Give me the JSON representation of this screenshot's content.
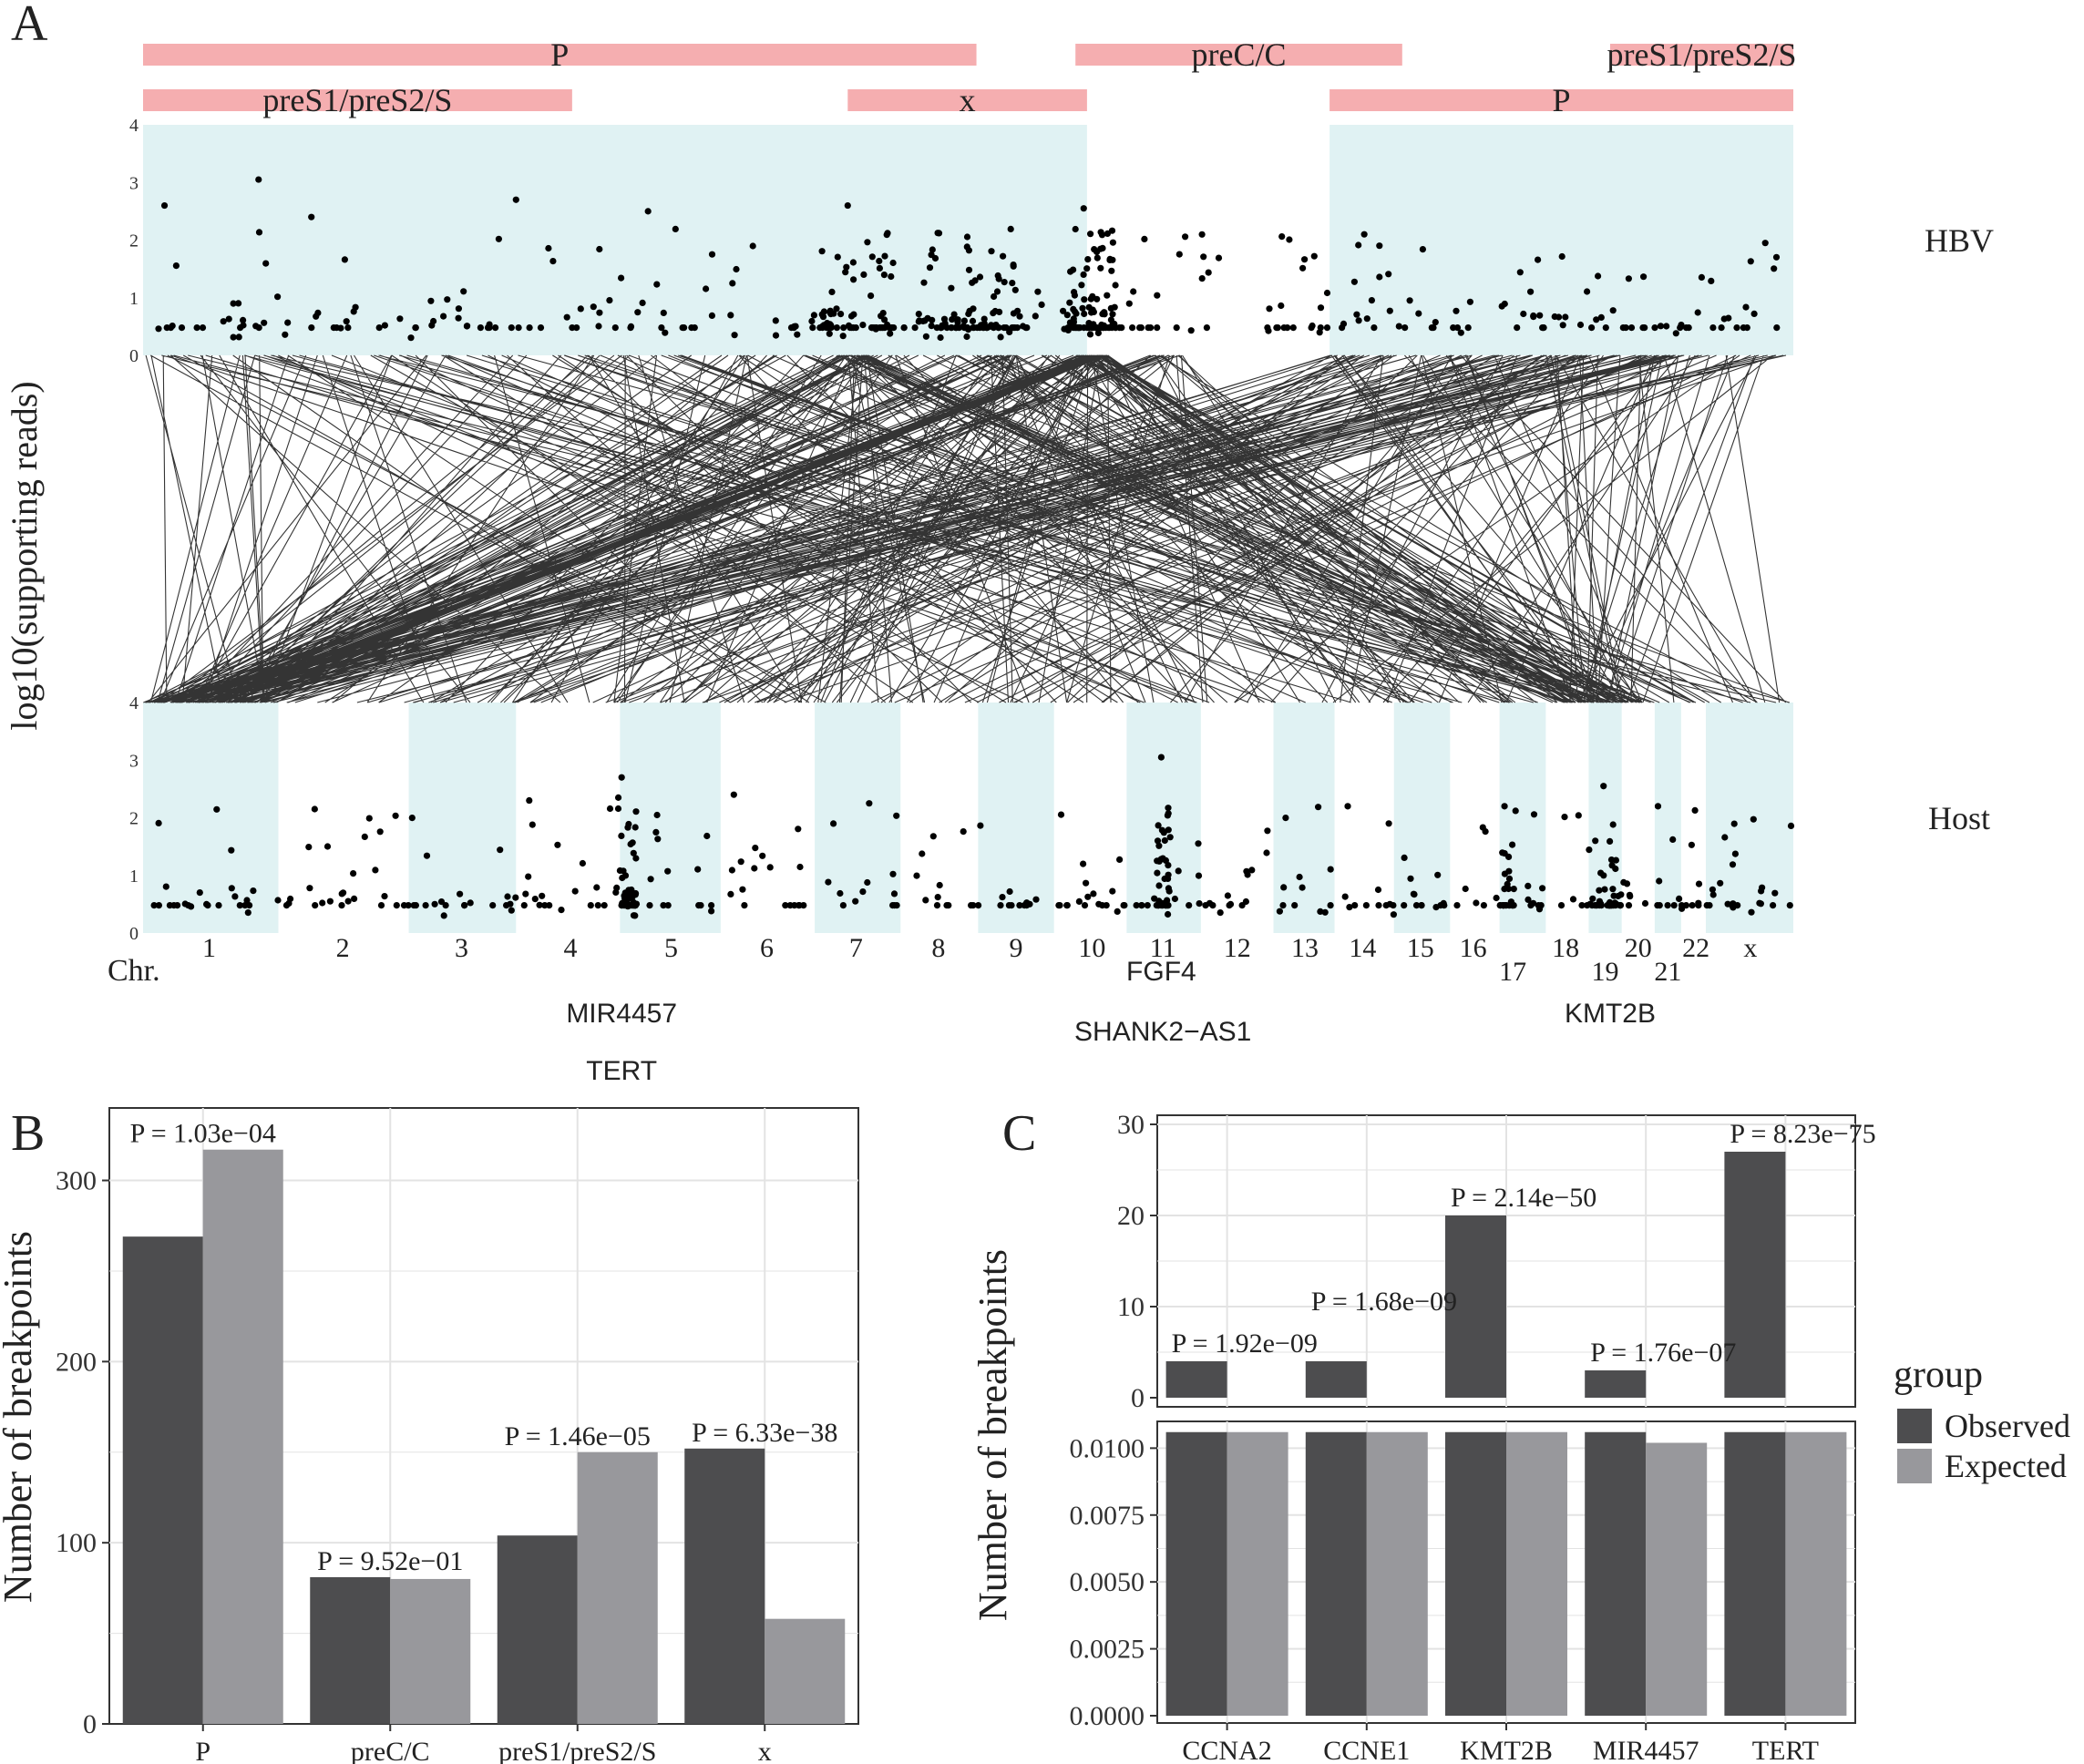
{
  "colors": {
    "observed": "#4d4d4f",
    "expected": "#98989c",
    "region": "#e0f2f3",
    "gene": "#f5aeb0",
    "grid": "#e3e3e3",
    "point": "#000000",
    "panel_border": "#333333"
  },
  "panelA": {
    "letter": "A",
    "ylabel": "log10(supporting reads)",
    "hbv_label": "HBV",
    "host_label": "Host",
    "yticks": [
      "0",
      "1",
      "2",
      "3",
      "4"
    ],
    "gene_row1": [
      {
        "name": "P",
        "start": 0,
        "end": 0.505
      },
      {
        "name": "preC/C",
        "start": 0.565,
        "end": 0.763
      },
      {
        "name": "preS1/preS2/S",
        "start": 0.889,
        "end": 1.0
      }
    ],
    "gene_row2": [
      {
        "name": "preS1/preS2/S",
        "start": 0,
        "end": 0.26
      },
      {
        "name": "x",
        "start": 0.427,
        "end": 0.572
      },
      {
        "name": "P",
        "start": 0.719,
        "end": 1.0
      }
    ],
    "hbv_regions": [
      [
        0,
        0.572
      ],
      [
        0.719,
        1.0
      ]
    ],
    "chr_label": "Chr.",
    "chromosomes": [
      {
        "name": "1",
        "start": 0.0,
        "end": 0.082,
        "label_pos": 0.04,
        "shaded": true,
        "row": 0
      },
      {
        "name": "2",
        "start": 0.082,
        "end": 0.161,
        "label_pos": 0.121,
        "shaded": false,
        "row": 0
      },
      {
        "name": "3",
        "start": 0.161,
        "end": 0.226,
        "label_pos": 0.193,
        "shaded": true,
        "row": 0
      },
      {
        "name": "4",
        "start": 0.226,
        "end": 0.289,
        "label_pos": 0.259,
        "shaded": false,
        "row": 0
      },
      {
        "name": "5",
        "start": 0.289,
        "end": 0.35,
        "label_pos": 0.32,
        "shaded": true,
        "row": 0
      },
      {
        "name": "6",
        "start": 0.35,
        "end": 0.407,
        "label_pos": 0.378,
        "shaded": false,
        "row": 0
      },
      {
        "name": "7",
        "start": 0.407,
        "end": 0.459,
        "label_pos": 0.432,
        "shaded": true,
        "row": 0
      },
      {
        "name": "8",
        "start": 0.459,
        "end": 0.506,
        "label_pos": 0.482,
        "shaded": false,
        "row": 0
      },
      {
        "name": "9",
        "start": 0.506,
        "end": 0.552,
        "label_pos": 0.529,
        "shaded": true,
        "row": 0
      },
      {
        "name": "10",
        "start": 0.552,
        "end": 0.596,
        "label_pos": 0.575,
        "shaded": false,
        "row": 0
      },
      {
        "name": "11",
        "start": 0.596,
        "end": 0.641,
        "label_pos": 0.618,
        "shaded": true,
        "row": 0
      },
      {
        "name": "12",
        "start": 0.641,
        "end": 0.685,
        "label_pos": 0.663,
        "shaded": false,
        "row": 0
      },
      {
        "name": "13",
        "start": 0.685,
        "end": 0.722,
        "label_pos": 0.704,
        "shaded": true,
        "row": 0
      },
      {
        "name": "14",
        "start": 0.722,
        "end": 0.758,
        "label_pos": 0.739,
        "shaded": false,
        "row": 0
      },
      {
        "name": "15",
        "start": 0.758,
        "end": 0.792,
        "label_pos": 0.774,
        "shaded": true,
        "row": 0
      },
      {
        "name": "16",
        "start": 0.792,
        "end": 0.822,
        "label_pos": 0.806,
        "shaded": false,
        "row": 0
      },
      {
        "name": "17",
        "start": 0.822,
        "end": 0.85,
        "label_pos": 0.83,
        "shaded": true,
        "row": 1
      },
      {
        "name": "18",
        "start": 0.85,
        "end": 0.876,
        "label_pos": 0.862,
        "shaded": false,
        "row": 0
      },
      {
        "name": "19",
        "start": 0.876,
        "end": 0.896,
        "label_pos": 0.886,
        "shaded": true,
        "row": 1
      },
      {
        "name": "20",
        "start": 0.896,
        "end": 0.916,
        "label_pos": 0.906,
        "shaded": false,
        "row": 0
      },
      {
        "name": "21",
        "start": 0.916,
        "end": 0.932,
        "label_pos": 0.924,
        "shaded": true,
        "row": 1
      },
      {
        "name": "22",
        "start": 0.932,
        "end": 0.947,
        "label_pos": 0.941,
        "shaded": false,
        "row": 0
      },
      {
        "name": "x",
        "start": 0.947,
        "end": 1.0,
        "label_pos": 0.974,
        "shaded": true,
        "row": 0
      }
    ],
    "gene_annotations": [
      {
        "text": "FGF4",
        "pos": 0.617,
        "row": 0
      },
      {
        "text": "MIR4457",
        "pos": 0.29,
        "row": 1
      },
      {
        "text": "KMT2B",
        "pos": 0.889,
        "row": 1
      },
      {
        "text": "SHANK2−AS1",
        "pos": 0.618,
        "row": 2
      },
      {
        "text": "TERT",
        "pos": 0.29,
        "row": 3
      }
    ]
  },
  "panelB": {
    "letter": "B",
    "ylabel": "Number of breakpoints",
    "chart_data": {
      "type": "bar",
      "categories": [
        "P",
        "preC/C",
        "preS1/preS2/S",
        "x"
      ],
      "series": [
        {
          "name": "Observed",
          "values": [
            269,
            81,
            104,
            152
          ]
        },
        {
          "name": "Expected",
          "values": [
            317,
            80,
            150,
            58
          ]
        }
      ],
      "pvalues": [
        "P = 1.03e−04",
        "P = 9.52e−01",
        "P = 1.46e−05",
        "P = 6.33e−38"
      ],
      "ylim": [
        0,
        340
      ],
      "yticks": [
        "0",
        "100",
        "200",
        "300"
      ],
      "ytick_values": [
        0,
        100,
        200,
        300
      ]
    }
  },
  "panelC": {
    "letter": "C",
    "ylabel": "Number of breakpoints",
    "legend_title": "group",
    "legend_items": [
      "Observed",
      "Expected"
    ],
    "chart_data": {
      "type": "bar",
      "categories": [
        "CCNA2",
        "CCNE1",
        "KMT2B",
        "MIR4457",
        "TERT"
      ],
      "observed_counts": [
        4,
        4,
        20,
        3,
        27
      ],
      "expected_values": [
        0.0106,
        0.0106,
        0.0106,
        0.0102,
        0.0106
      ],
      "observed_lower_cap": 0.0106,
      "pvalues": [
        "P = 1.92e−09",
        "P = 1.68e−09",
        "P = 2.14e−50",
        "P = 1.76e−07",
        "P = 8.23e−75"
      ],
      "top_ylim": [
        0,
        31
      ],
      "top_yticks": [
        "0",
        "10",
        "20",
        "30"
      ],
      "top_ytick_values": [
        0,
        10,
        20,
        30
      ],
      "bottom_ylim": [
        0,
        0.011
      ],
      "bottom_yticks": [
        "0.0000",
        "0.0025",
        "0.0050",
        "0.0075",
        "0.0100"
      ],
      "bottom_ytick_values": [
        0,
        0.0025,
        0.005,
        0.0075,
        0.01
      ]
    }
  }
}
